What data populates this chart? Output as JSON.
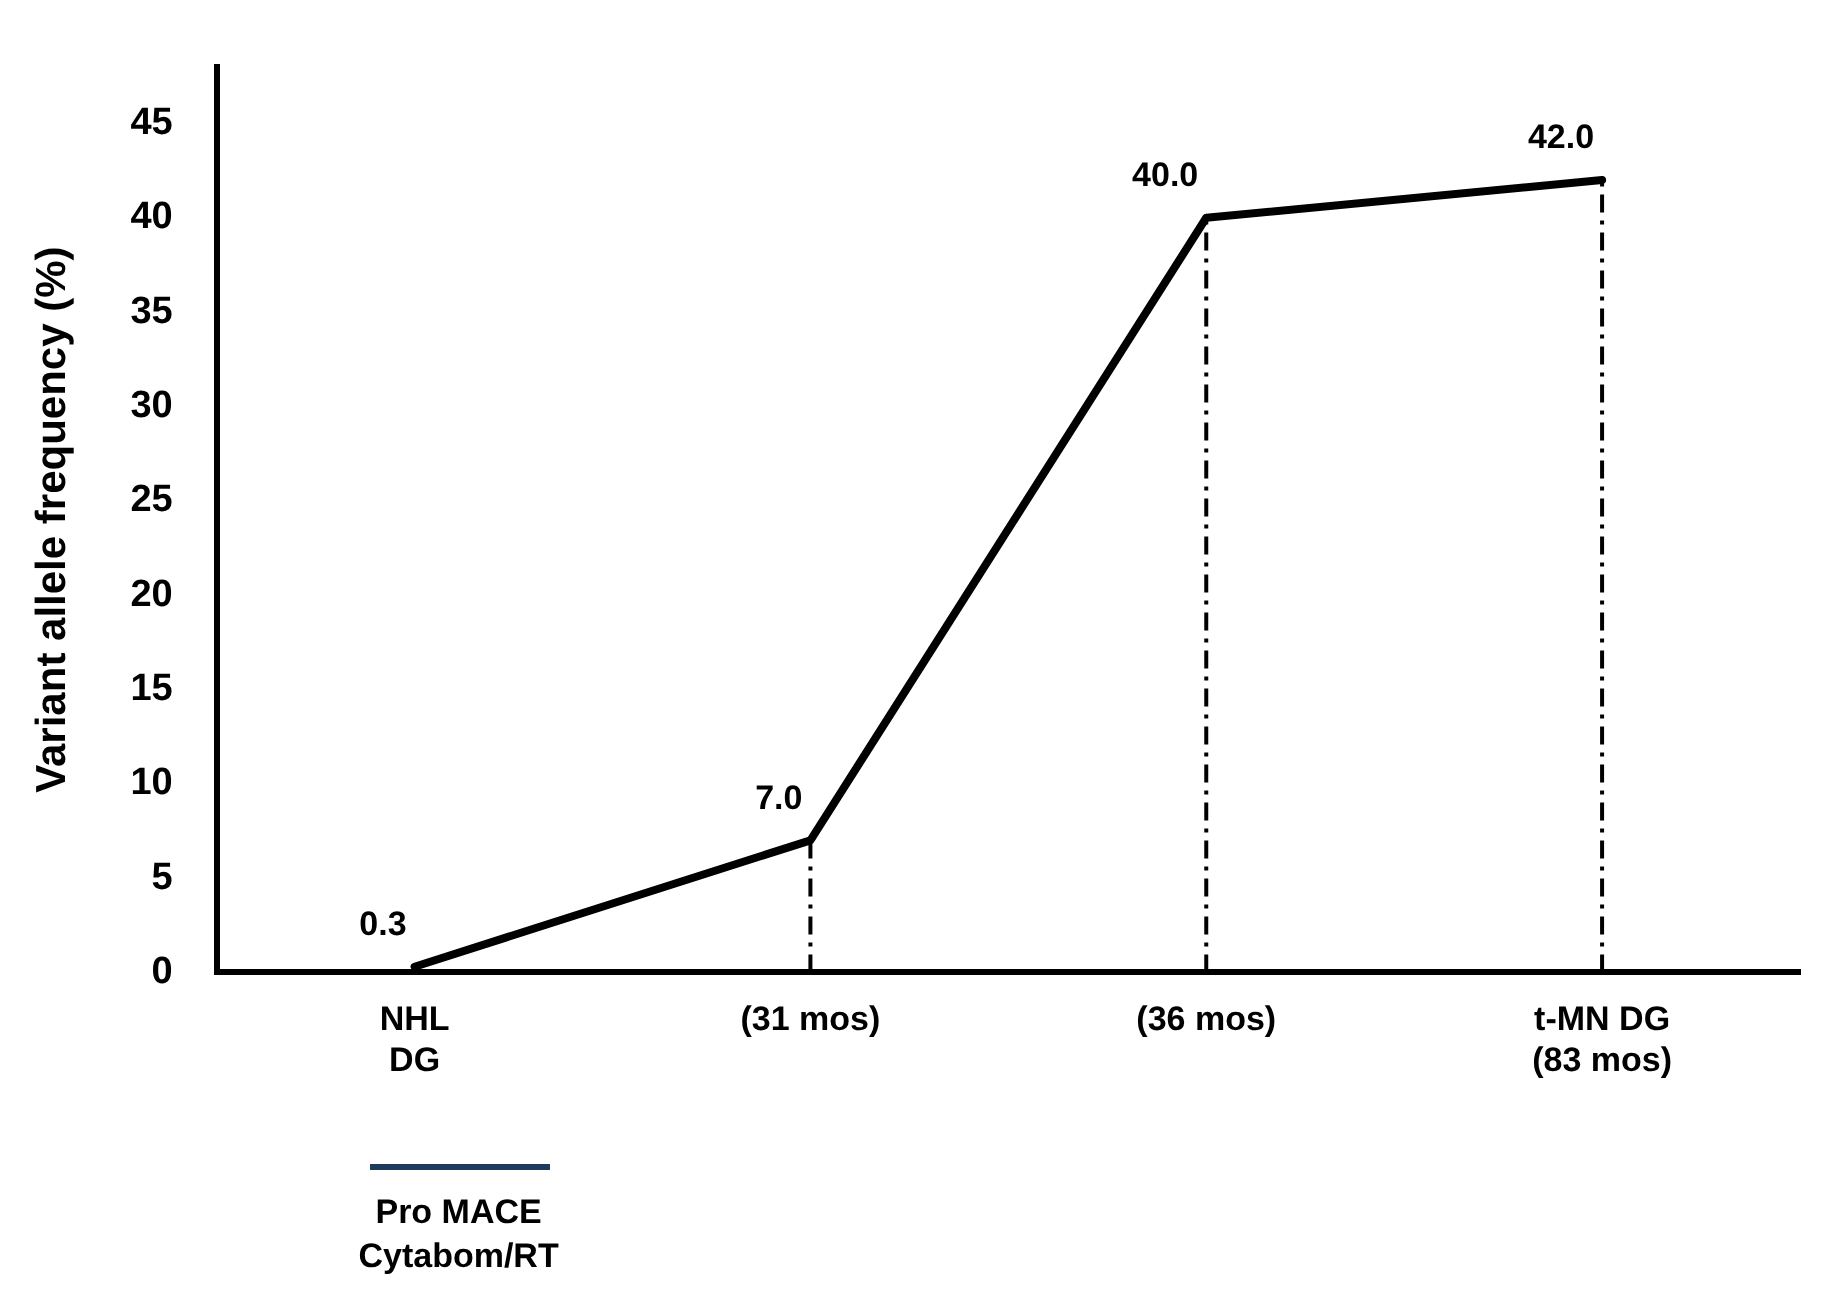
{
  "chart_data": {
    "type": "line",
    "ylabel": "Variant allele frequency (%)",
    "categories": [
      "NHL\nDG",
      "(31 mos)",
      "(36 mos)",
      "t-MN DG\n(83 mos)"
    ],
    "series": [
      {
        "color": "#000000",
        "values": [
          0.3,
          7.0,
          40.0,
          42.0
        ],
        "value_labels": [
          "0.3",
          "7.0",
          "40.0",
          "42.0"
        ]
      }
    ],
    "ylim": [
      0,
      48
    ],
    "yticks": [
      0,
      5,
      10,
      15,
      20,
      25,
      30,
      35,
      40,
      45
    ],
    "grid": false,
    "legend": false,
    "marker": "none",
    "line_style": "solid",
    "ref_lines": [
      {
        "axis": "x",
        "value": "(31 mos)",
        "line_style": "dashdot",
        "color": "#000000"
      },
      {
        "axis": "x",
        "value": "(36 mos)",
        "line_style": "dashdot",
        "color": "#000000"
      },
      {
        "axis": "x",
        "value": "t-MN DG\n(83 mos)",
        "line_style": "dashdot",
        "color": "#000000"
      }
    ],
    "annotations": [
      "Pro MACE\nCytabom/RT"
    ]
  }
}
